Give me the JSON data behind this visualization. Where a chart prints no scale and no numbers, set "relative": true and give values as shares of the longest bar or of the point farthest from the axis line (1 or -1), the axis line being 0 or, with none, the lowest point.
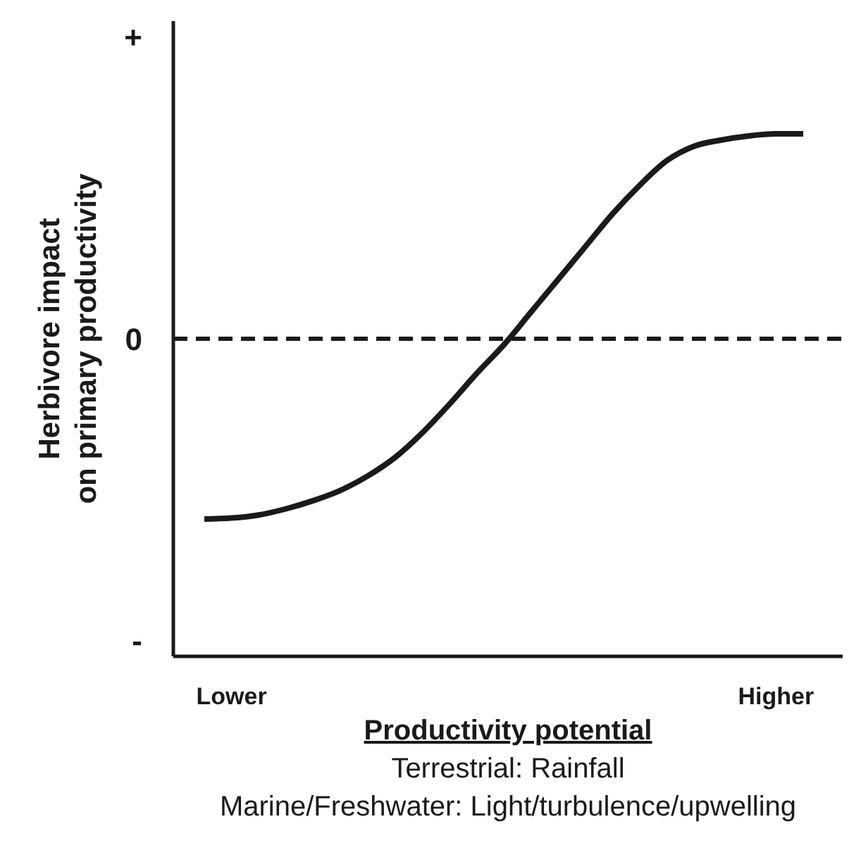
{
  "chart_data": {
    "type": "line",
    "relative": true,
    "xlabel": "Productivity potential",
    "ylabel": "Herbivore impact\non primary productivity",
    "annotations": [
      "Terrestrial: Rainfall",
      "Marine/Freshwater: Light/turbulence/upwelling",
      "+",
      "0",
      "-"
    ],
    "categories": [
      null,
      "Lower",
      null,
      null,
      null,
      null,
      null,
      null,
      null,
      null,
      null,
      null,
      null,
      null,
      null,
      null,
      null,
      null,
      null,
      null,
      null,
      "Higher",
      null
    ],
    "series": [
      {
        "color": "#1a1a1a",
        "values": [
          -0.88,
          -0.875,
          -0.86,
          -0.83,
          -0.79,
          -0.74,
          -0.67,
          -0.58,
          -0.46,
          -0.32,
          -0.17,
          -0.03,
          0.13,
          0.29,
          0.45,
          0.61,
          0.75,
          0.87,
          0.94,
          0.97,
          0.99,
          1,
          1
        ]
      }
    ],
    "ref_lines": [
      {
        "axis": "y",
        "value": 0,
        "line_style": "dashed",
        "color": "#1a1a1a"
      }
    ],
    "legend": false,
    "marker": "none",
    "line_style": "solid"
  }
}
